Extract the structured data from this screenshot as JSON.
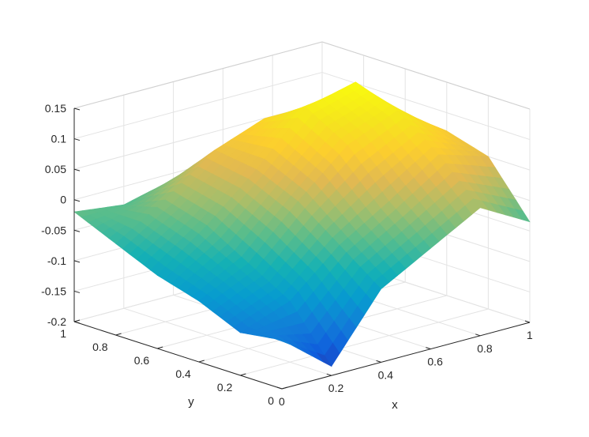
{
  "chart_data": {
    "type": "surface",
    "title": "",
    "xlabel": "x",
    "ylabel": "y",
    "zlabel": "",
    "xlim": [
      0,
      1
    ],
    "ylim": [
      0,
      1
    ],
    "zlim": [
      -0.2,
      0.15
    ],
    "x_ticks": [
      "0",
      "0.2",
      "0.4",
      "0.6",
      "0.8",
      "1"
    ],
    "y_ticks": [
      "0",
      "0.2",
      "0.4",
      "0.6",
      "0.8",
      "1"
    ],
    "z_ticks": [
      "-0.2",
      "-0.15",
      "-0.1",
      "-0.05",
      "0",
      "0.05",
      "0.1",
      "0.15"
    ],
    "grid": true,
    "colormap": "parula",
    "x": [
      0,
      0.2,
      0.4,
      0.6,
      0.8,
      1
    ],
    "y": [
      0,
      0.2,
      0.4,
      0.6,
      0.8,
      1
    ],
    "z": [
      [
        -0.12,
        -0.185,
        -0.08,
        -0.035,
        0.01,
        -0.035
      ],
      [
        -0.13,
        -0.1,
        -0.03,
        0.02,
        0.075,
        0.05
      ],
      [
        -0.1,
        -0.06,
        0.02,
        0.09,
        0.125,
        0.07
      ],
      [
        -0.08,
        -0.02,
        0.05,
        0.13,
        0.15,
        0.07
      ],
      [
        -0.05,
        0.0,
        0.06,
        0.09,
        0.08,
        0.07
      ],
      [
        -0.02,
        -0.03,
        -0.01,
        0.0,
        -0.02,
        -0.045
      ]
    ]
  }
}
